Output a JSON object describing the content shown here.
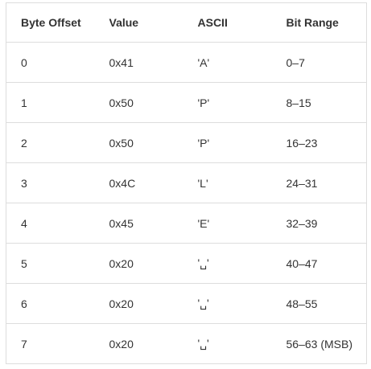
{
  "table": {
    "headers": [
      "Byte Offset",
      "Value",
      "ASCII",
      "Bit Range"
    ],
    "rows": [
      [
        "0",
        "0x41",
        "'A'",
        "0–7"
      ],
      [
        "1",
        "0x50",
        "'P'",
        "8–15"
      ],
      [
        "2",
        "0x50",
        "'P'",
        "16–23"
      ],
      [
        "3",
        "0x4C",
        "'L'",
        "24–31"
      ],
      [
        "4",
        "0x45",
        "'E'",
        "32–39"
      ],
      [
        "5",
        "0x20",
        "'␣'",
        "40–47"
      ],
      [
        "6",
        "0x20",
        "'␣'",
        "48–55"
      ],
      [
        "7",
        "0x20",
        "'␣'",
        "56–63 (MSB)"
      ]
    ]
  }
}
